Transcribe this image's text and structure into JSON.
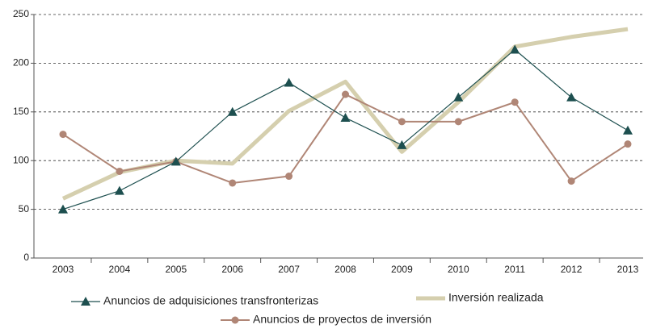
{
  "chart_data": {
    "type": "line",
    "categories": [
      "2003",
      "2004",
      "2005",
      "2006",
      "2007",
      "2008",
      "2009",
      "2010",
      "2011",
      "2012",
      "2013"
    ],
    "series": [
      {
        "name": "Anuncios de adquisiciones transfronterizas",
        "color": "#1d4f4f",
        "marker": "triangle",
        "width": 1.2,
        "values": [
          50,
          69,
          99,
          150,
          180,
          144,
          116,
          165,
          214,
          165,
          131
        ]
      },
      {
        "name": "Inversión realizada",
        "color": "#d5cfae",
        "marker": "none",
        "width": 5,
        "values": [
          61,
          88,
          100,
          97,
          151,
          181,
          109,
          160,
          217,
          227,
          235
        ]
      },
      {
        "name": "Anuncios de proyectos de inversión",
        "color": "#b08676",
        "marker": "circle",
        "width": 2,
        "values": [
          127,
          89,
          99,
          77,
          84,
          168,
          140,
          140,
          160,
          79,
          117
        ]
      }
    ],
    "ylim": [
      0,
      250
    ],
    "yticks": [
      0,
      50,
      100,
      150,
      200,
      250
    ],
    "grid": true
  }
}
